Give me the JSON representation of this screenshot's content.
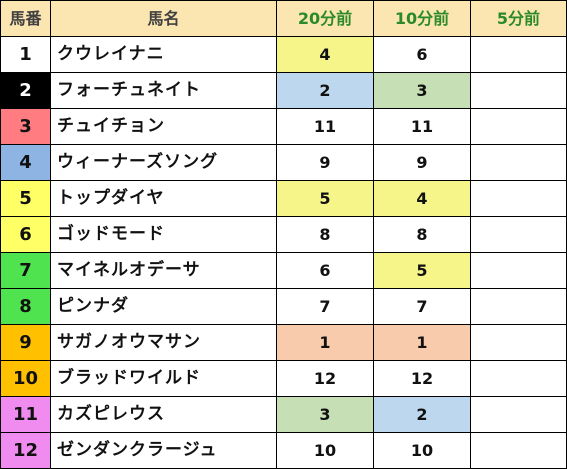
{
  "header": {
    "col_number": "馬番",
    "col_name": "馬名",
    "col_t20": "20分前",
    "col_t10": "10分前",
    "col_t5": "5分前"
  },
  "rows": [
    {
      "number": "1",
      "name": "クウレイナニ",
      "t20": "4",
      "t10": "6",
      "t5": "",
      "num_bg": "#ffffff",
      "num_fg": "#111111",
      "t20_bg": "#f5f58a",
      "t10_bg": "#ffffff"
    },
    {
      "number": "2",
      "name": "フォーチュネイト",
      "t20": "2",
      "t10": "3",
      "t5": "",
      "num_bg": "#000000",
      "num_fg": "#ffffff",
      "t20_bg": "#bdd7ee",
      "t10_bg": "#c6dfb4"
    },
    {
      "number": "3",
      "name": "チュイチョン",
      "t20": "11",
      "t10": "11",
      "t5": "",
      "num_bg": "#ff7c80",
      "num_fg": "#111111",
      "t20_bg": "#ffffff",
      "t10_bg": "#ffffff"
    },
    {
      "number": "4",
      "name": "ウィーナーズソング",
      "t20": "9",
      "t10": "9",
      "t5": "",
      "num_bg": "#8db4e2",
      "num_fg": "#111111",
      "t20_bg": "#ffffff",
      "t10_bg": "#ffffff"
    },
    {
      "number": "5",
      "name": "トップダイヤ",
      "t20": "5",
      "t10": "4",
      "t5": "",
      "num_bg": "#ffff66",
      "num_fg": "#111111",
      "t20_bg": "#f5f58a",
      "t10_bg": "#f5f58a"
    },
    {
      "number": "6",
      "name": "ゴッドモード",
      "t20": "8",
      "t10": "8",
      "t5": "",
      "num_bg": "#ffff66",
      "num_fg": "#111111",
      "t20_bg": "#ffffff",
      "t10_bg": "#ffffff"
    },
    {
      "number": "7",
      "name": "マイネルオデーサ",
      "t20": "6",
      "t10": "5",
      "t5": "",
      "num_bg": "#4fe34f",
      "num_fg": "#111111",
      "t20_bg": "#ffffff",
      "t10_bg": "#f5f58a"
    },
    {
      "number": "8",
      "name": "ピンナダ",
      "t20": "7",
      "t10": "7",
      "t5": "",
      "num_bg": "#4fe34f",
      "num_fg": "#111111",
      "t20_bg": "#ffffff",
      "t10_bg": "#ffffff"
    },
    {
      "number": "9",
      "name": "サガノオウマサン",
      "t20": "1",
      "t10": "1",
      "t5": "",
      "num_bg": "#ffc000",
      "num_fg": "#111111",
      "t20_bg": "#f8cbad",
      "t10_bg": "#f8cbad"
    },
    {
      "number": "10",
      "name": "ブラッドワイルド",
      "t20": "12",
      "t10": "12",
      "t5": "",
      "num_bg": "#ffc000",
      "num_fg": "#111111",
      "t20_bg": "#ffffff",
      "t10_bg": "#ffffff"
    },
    {
      "number": "11",
      "name": "カズピレウス",
      "t20": "3",
      "t10": "2",
      "t5": "",
      "num_bg": "#f08cf0",
      "num_fg": "#111111",
      "t20_bg": "#c6dfb4",
      "t10_bg": "#bdd7ee"
    },
    {
      "number": "12",
      "name": "ゼンダンクラージュ",
      "t20": "10",
      "t10": "10",
      "t5": "",
      "num_bg": "#f08cf0",
      "num_fg": "#111111",
      "t20_bg": "#ffffff",
      "t10_bg": "#ffffff"
    }
  ]
}
